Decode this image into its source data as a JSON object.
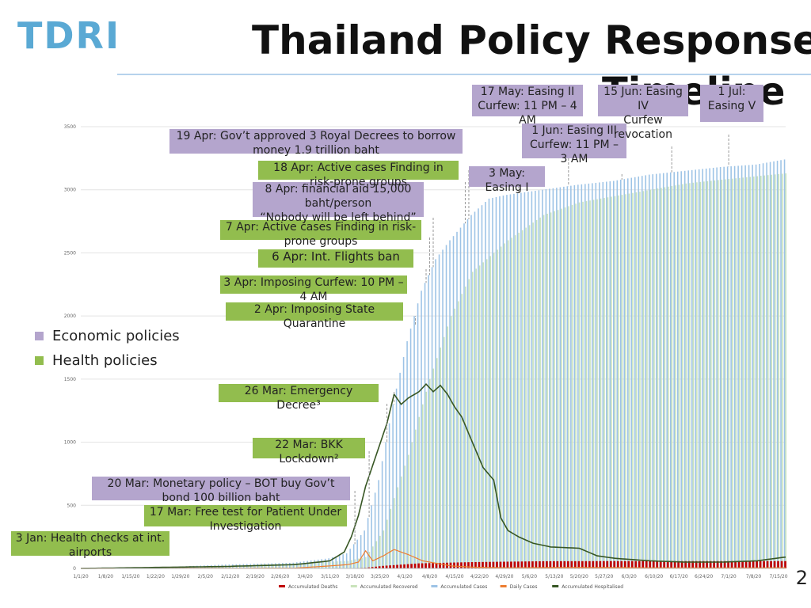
{
  "logo": "TDRI",
  "title": "Thailand Policy Response",
  "title_line2": "Timeline",
  "page_number": "2",
  "legend": [
    {
      "label": "Economic policies",
      "color": "#b4a5cd"
    },
    {
      "label": "Health policies",
      "color": "#92bd4e"
    }
  ],
  "annotations": [
    {
      "text": "3 Jan: Health checks at int. airports",
      "kind": "health"
    },
    {
      "text": "17 Mar: Free test for Patient Under Investigation",
      "kind": "health"
    },
    {
      "text": "20 Mar: Monetary policy – BOT buy Gov’t bond 100 billion baht",
      "kind": "economic"
    },
    {
      "text": "22 Mar: BKK Lockdown²",
      "kind": "health"
    },
    {
      "text": "26 Mar: Emergency Decree³",
      "kind": "health"
    },
    {
      "text": "2 Apr: Imposing State Quarantine",
      "kind": "health"
    },
    {
      "text": "3 Apr: Imposing Curfew: 10 PM – 4 AM",
      "kind": "health"
    },
    {
      "text": "6 Apr: Int. Flights ban",
      "kind": "health"
    },
    {
      "text": "7 Apr: Active cases Finding in risk-prone groups",
      "kind": "health"
    },
    {
      "text": "8 Apr: financial aid 15,000 baht/person\n“Nobody will be left behind”",
      "kind": "economic"
    },
    {
      "text": "18 Apr: Active cases Finding in risk-prone groups",
      "kind": "health"
    },
    {
      "text": "19 Apr: Gov’t approved 3 Royal Decrees to borrow money 1.9 trillion baht",
      "kind": "economic"
    },
    {
      "text": "3 May: Easing I",
      "kind": "economic"
    },
    {
      "text": "17 May: Easing II\nCurfew: 11 PM – 4 AM",
      "kind": "economic"
    },
    {
      "text": "1 Jun: Easing III\nCurfew: 11 PM – 3 AM",
      "kind": "economic"
    },
    {
      "text": "15 Jun: Easing IV\nCurfew revocation",
      "kind": "economic"
    },
    {
      "text": "1 Jul: Easing V",
      "kind": "economic"
    }
  ],
  "chart_data": {
    "type": "bar",
    "ylim": [
      0,
      3500
    ],
    "yticks": [
      "0",
      "500",
      "1000",
      "1500",
      "2000",
      "2500",
      "3000",
      "3500"
    ],
    "xtick_labels": [
      "1/1/20",
      "1/8/20",
      "1/15/20",
      "1/22/20",
      "1/29/20",
      "2/5/20",
      "2/12/20",
      "2/19/20",
      "2/26/20",
      "3/4/20",
      "3/11/20",
      "3/18/20",
      "3/25/20",
      "4/1/20",
      "4/8/20",
      "4/15/20",
      "4/22/20",
      "4/29/20",
      "5/6/20",
      "5/13/20",
      "5/20/20",
      "5/27/20",
      "6/3/20",
      "6/10/20",
      "6/17/20",
      "6/24/20",
      "7/1/20",
      "7/8/20",
      "7/15/20"
    ],
    "colors": {
      "deaths": "#c00000",
      "recovered": "#c9e3bb",
      "cases": "#9dc3e6",
      "daily": "#ed7d31",
      "hospitalised": "#375623"
    },
    "series": [
      {
        "name": "Accumulated Deaths",
        "kind": "bar",
        "points": [
          [
            0,
            0
          ],
          [
            59,
            0
          ],
          [
            60,
            1
          ],
          [
            75,
            1
          ],
          [
            80,
            5
          ],
          [
            85,
            20
          ],
          [
            95,
            40
          ],
          [
            110,
            50
          ],
          [
            130,
            57
          ],
          [
            150,
            58
          ],
          [
            170,
            58
          ],
          [
            198,
            58
          ]
        ]
      },
      {
        "name": "Accumulated Recovered",
        "kind": "bar",
        "points": [
          [
            0,
            0
          ],
          [
            30,
            10
          ],
          [
            60,
            40
          ],
          [
            75,
            60
          ],
          [
            80,
            90
          ],
          [
            85,
            300
          ],
          [
            92,
            900
          ],
          [
            98,
            1500
          ],
          [
            104,
            2000
          ],
          [
            110,
            2350
          ],
          [
            120,
            2600
          ],
          [
            130,
            2800
          ],
          [
            140,
            2900
          ],
          [
            150,
            2950
          ],
          [
            160,
            3000
          ],
          [
            170,
            3050
          ],
          [
            180,
            3080
          ],
          [
            198,
            3130
          ]
        ]
      },
      {
        "name": "Accumulated Cases",
        "kind": "bar",
        "points": [
          [
            0,
            0
          ],
          [
            20,
            5
          ],
          [
            40,
            30
          ],
          [
            60,
            45
          ],
          [
            70,
            80
          ],
          [
            75,
            120
          ],
          [
            80,
            300
          ],
          [
            84,
            700
          ],
          [
            88,
            1300
          ],
          [
            92,
            1800
          ],
          [
            96,
            2200
          ],
          [
            100,
            2450
          ],
          [
            104,
            2600
          ],
          [
            110,
            2800
          ],
          [
            115,
            2930
          ],
          [
            120,
            2960
          ],
          [
            130,
            3000
          ],
          [
            140,
            3040
          ],
          [
            150,
            3070
          ],
          [
            160,
            3120
          ],
          [
            170,
            3150
          ],
          [
            180,
            3180
          ],
          [
            190,
            3200
          ],
          [
            198,
            3240
          ]
        ]
      },
      {
        "name": "Daily Cases",
        "kind": "line",
        "points": [
          [
            0,
            0
          ],
          [
            60,
            2
          ],
          [
            70,
            20
          ],
          [
            75,
            30
          ],
          [
            78,
            50
          ],
          [
            80,
            140
          ],
          [
            82,
            60
          ],
          [
            85,
            100
          ],
          [
            88,
            150
          ],
          [
            92,
            110
          ],
          [
            96,
            60
          ],
          [
            100,
            40
          ],
          [
            104,
            20
          ],
          [
            110,
            10
          ],
          [
            120,
            5
          ],
          [
            140,
            8
          ],
          [
            160,
            5
          ],
          [
            180,
            4
          ],
          [
            198,
            5
          ]
        ]
      },
      {
        "name": "Accumulated Hospitalised",
        "kind": "line",
        "points": [
          [
            0,
            0
          ],
          [
            40,
            15
          ],
          [
            60,
            30
          ],
          [
            70,
            60
          ],
          [
            74,
            130
          ],
          [
            76,
            250
          ],
          [
            78,
            420
          ],
          [
            80,
            650
          ],
          [
            83,
            900
          ],
          [
            86,
            1150
          ],
          [
            88,
            1380
          ],
          [
            90,
            1300
          ],
          [
            92,
            1350
          ],
          [
            95,
            1400
          ],
          [
            97,
            1460
          ],
          [
            99,
            1400
          ],
          [
            101,
            1450
          ],
          [
            103,
            1380
          ],
          [
            105,
            1280
          ],
          [
            107,
            1200
          ],
          [
            110,
            1000
          ],
          [
            113,
            800
          ],
          [
            116,
            700
          ],
          [
            118,
            400
          ],
          [
            120,
            300
          ],
          [
            123,
            250
          ],
          [
            127,
            200
          ],
          [
            132,
            170
          ],
          [
            140,
            160
          ],
          [
            145,
            100
          ],
          [
            150,
            80
          ],
          [
            160,
            60
          ],
          [
            170,
            50
          ],
          [
            180,
            50
          ],
          [
            190,
            60
          ],
          [
            198,
            90
          ]
        ]
      }
    ]
  }
}
